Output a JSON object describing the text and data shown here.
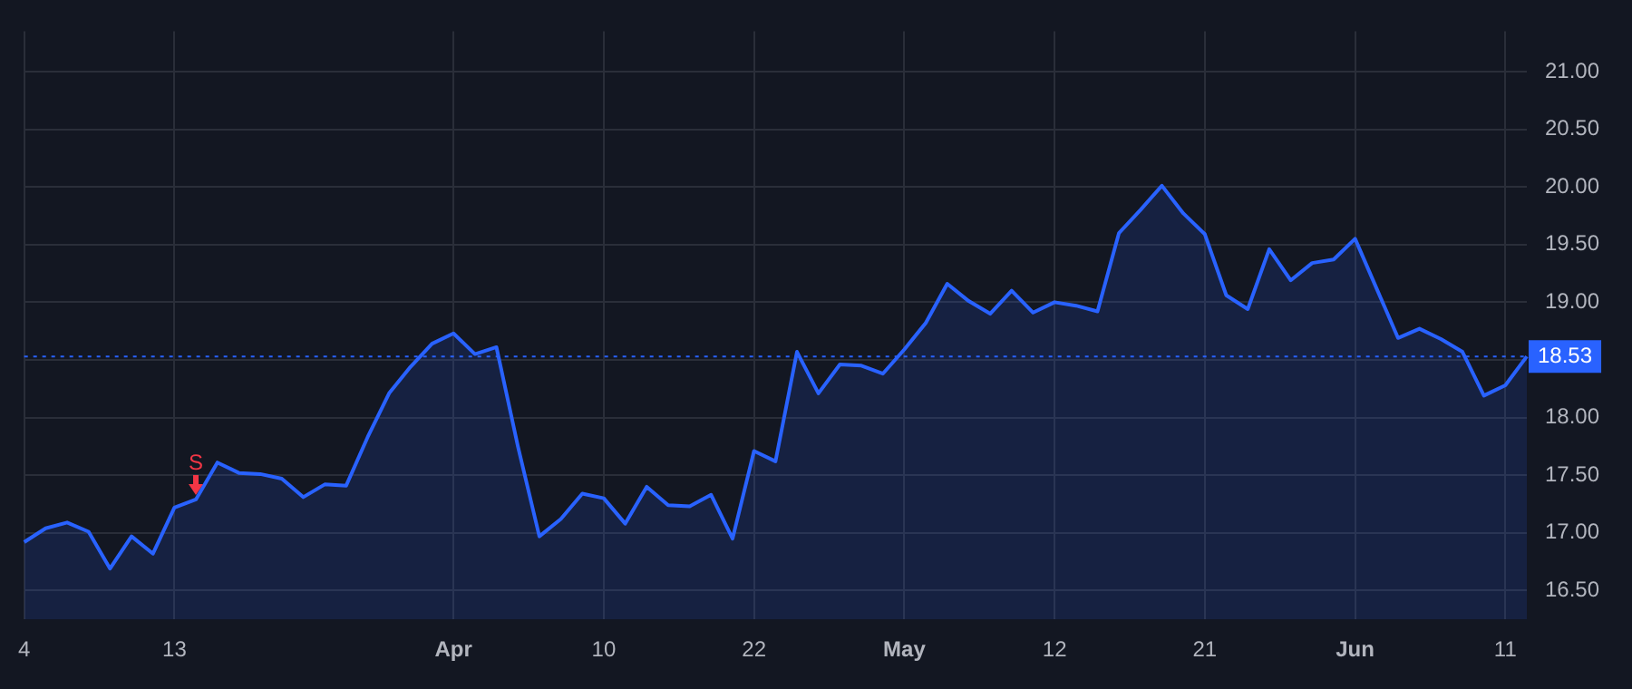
{
  "chart_data": {
    "type": "area",
    "categories": [
      "4",
      null,
      null,
      null,
      null,
      null,
      null,
      "13",
      null,
      null,
      null,
      null,
      null,
      null,
      null,
      null,
      null,
      null,
      null,
      null,
      "Apr",
      null,
      null,
      null,
      null,
      null,
      null,
      "10",
      null,
      null,
      null,
      null,
      null,
      null,
      "22",
      null,
      null,
      null,
      null,
      null,
      null,
      "May",
      null,
      null,
      null,
      null,
      null,
      null,
      "12",
      null,
      null,
      null,
      null,
      null,
      null,
      "21",
      null,
      null,
      null,
      null,
      null,
      null,
      "Jun",
      null,
      null,
      null,
      null,
      null,
      null,
      "11",
      null
    ],
    "series": [
      {
        "color": "#2962ff",
        "values": [
          16.92,
          17.04,
          17.09,
          17.01,
          16.69,
          16.97,
          16.82,
          17.22,
          17.29,
          17.61,
          17.52,
          17.51,
          17.47,
          17.31,
          17.42,
          17.41,
          17.83,
          18.21,
          18.44,
          18.64,
          18.73,
          18.55,
          18.61,
          17.75,
          16.97,
          17.12,
          17.34,
          17.3,
          17.08,
          17.4,
          17.24,
          17.23,
          17.33,
          16.95,
          17.71,
          17.62,
          18.57,
          18.21,
          18.46,
          18.45,
          18.38,
          18.59,
          18.82,
          19.16,
          19.01,
          18.9,
          19.1,
          18.91,
          19.0,
          18.97,
          18.92,
          19.6,
          19.8,
          20.01,
          19.77,
          19.59,
          19.06,
          18.94,
          19.46,
          19.19,
          19.34,
          19.37,
          19.55,
          19.12,
          18.69,
          18.77,
          18.68,
          18.57,
          18.19,
          18.28,
          18.53
        ]
      }
    ],
    "ylim": [
      16.25,
      21.35
    ],
    "yticks": [
      {
        "value": 16.5,
        "label": "16.50"
      },
      {
        "value": 17,
        "label": "17.00"
      },
      {
        "value": 17.5,
        "label": "17.50"
      },
      {
        "value": 18,
        "label": "18.00"
      },
      {
        "value": 18.5,
        "label": null
      },
      {
        "value": 19,
        "label": "19.00"
      },
      {
        "value": 19.5,
        "label": "19.50"
      },
      {
        "value": 20,
        "label": "20.00"
      },
      {
        "value": 20.5,
        "label": "20.50"
      },
      {
        "value": 21,
        "label": "21.00"
      }
    ],
    "ref_lines": [
      {
        "axis": "y",
        "value": 18.53,
        "label": "18.53",
        "color": "#2962ff",
        "line_style": "dotted"
      }
    ],
    "annotations": [
      {
        "text": "S",
        "y": 17.29
      }
    ],
    "grid": true,
    "legend": false,
    "marker": "none",
    "line_style": "solid"
  }
}
